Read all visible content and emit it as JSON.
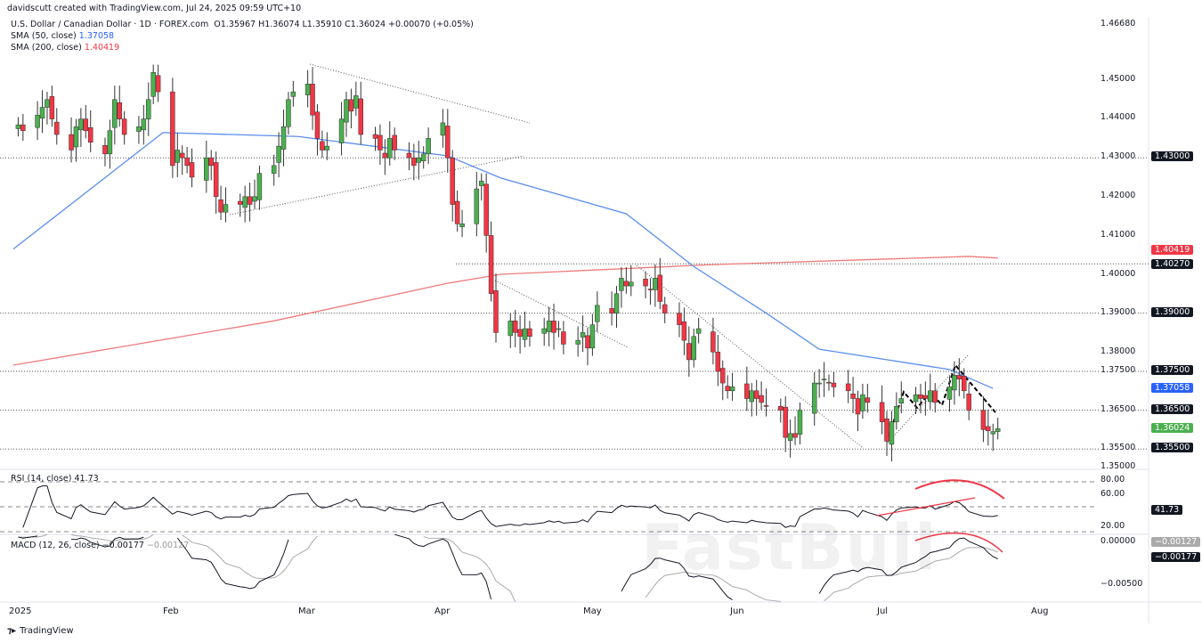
{
  "header": {
    "credit": "davidscutt created with TradingView.com, Jul 24, 2025 09:59 UTC+10"
  },
  "legend": {
    "symbol": "U.S. Dollar / Canadian Dollar · 1D · FOREX.com",
    "ohlc": "O1.35967  H1.36074  L1.35910  C1.36024  +0.00070 (+0.05%)",
    "sma50_label": "SMA (50, close)",
    "sma50_value": "1.37058",
    "sma200_label": "SMA (200, close)",
    "sma200_value": "1.40419",
    "rsi_label": "RSI (14, close)",
    "rsi_value": "41.73",
    "macd_label": "MACD (12, 26, close)",
    "macd_value1": "−0.00177",
    "macd_value2": "−0.00127"
  },
  "colors": {
    "up": "#089981",
    "up_body": "#4caf50",
    "down": "#f23645",
    "sma50": "#5b8def",
    "sma200": "#ef7b7b",
    "current": "#4caf50",
    "annotation": "#f23645"
  },
  "chart_data": {
    "type": "candlestick",
    "start_date": "2025-01-02",
    "closes": [
      1.4385,
      1.437,
      1.441,
      1.443,
      1.445,
      1.44,
      1.436,
      1.432,
      1.438,
      1.44,
      1.437,
      1.434,
      1.431,
      1.437,
      1.445,
      1.44,
      1.436,
      1.438,
      1.44,
      1.445,
      1.452,
      1.447,
      1.428,
      1.432,
      1.43,
      1.428,
      1.425,
      1.43,
      1.428,
      1.42,
      1.416,
      1.418,
      1.418,
      1.42,
      1.418,
      1.42,
      1.426,
      1.428,
      1.433,
      1.438,
      1.445,
      1.447,
      1.449,
      1.441,
      1.435,
      1.432,
      1.433,
      1.44,
      1.445,
      1.442,
      1.446,
      1.436,
      1.435,
      1.432,
      1.43,
      1.435,
      1.432,
      1.43,
      1.428,
      1.43,
      1.431,
      1.435,
      1.439,
      1.43,
      1.418,
      1.413,
      1.413,
      1.422,
      1.424,
      1.41,
      1.395,
      1.385,
      1.388,
      1.385,
      1.384,
      1.386,
      1.384,
      1.386,
      1.388,
      1.385,
      1.386,
      1.382,
      1.383,
      1.385,
      1.381,
      1.387,
      1.392,
      1.39,
      1.395,
      1.399,
      1.397,
      1.398,
      1.397,
      1.396,
      1.399,
      1.393,
      1.39,
      1.387,
      1.383,
      1.378,
      1.384,
      1.386,
      1.38,
      1.375,
      1.372,
      1.37,
      1.371,
      1.368,
      1.37,
      1.368,
      1.367,
      1.366,
      1.365,
      1.358,
      1.359,
      1.358,
      1.365,
      1.372,
      1.372,
      1.373,
      1.372,
      1.371,
      1.37,
      1.368,
      1.364,
      1.369,
      1.367,
      1.362,
      1.357,
      1.362,
      1.366,
      1.368,
      1.369,
      1.368,
      1.368,
      1.37,
      1.367,
      1.371,
      1.374,
      1.373,
      1.37,
      1.365,
      1.36,
      1.3597,
      1.3595,
      1.36024
    ],
    "sma50": [
      [
        "2025-01-01",
        1.4065
      ],
      [
        "2025-02-01",
        1.4365
      ],
      [
        "2025-03-01",
        1.4355
      ],
      [
        "2025-04-01",
        1.4305
      ],
      [
        "2025-04-12",
        1.4248
      ],
      [
        "2025-05-08",
        1.4156
      ],
      [
        "2025-05-22",
        1.402
      ],
      [
        "2025-06-06",
        1.39
      ],
      [
        "2025-06-17",
        1.3807
      ],
      [
        "2025-07-02",
        1.3778
      ],
      [
        "2025-07-14",
        1.3755
      ],
      [
        "2025-07-23",
        1.3706
      ]
    ],
    "sma200": [
      [
        "2025-01-01",
        1.3766
      ],
      [
        "2025-02-24",
        1.388
      ],
      [
        "2025-04-01",
        1.3977
      ],
      [
        "2025-04-12",
        1.4
      ],
      [
        "2025-05-26",
        1.4025
      ],
      [
        "2025-07-18",
        1.4046
      ],
      [
        "2025-07-24",
        1.4042
      ]
    ],
    "levels": [
      1.43,
      1.4027,
      1.39,
      1.375,
      1.365,
      1.355
    ],
    "price_ticks": [
      "1.46680",
      "1.45000",
      "1.44000",
      "1.43000",
      "1.42000",
      "1.41000",
      "1.40000",
      "1.39000",
      "1.38000",
      "1.37500",
      "1.36500",
      "1.35500",
      "1.35000"
    ],
    "price_labels": [
      {
        "text": "1.43000",
        "type": "level"
      },
      {
        "text": "1.40419",
        "type": "sma200"
      },
      {
        "text": "1.40270",
        "type": "level"
      },
      {
        "text": "1.39000",
        "type": "level"
      },
      {
        "text": "1.37500",
        "type": "level"
      },
      {
        "text": "1.37058",
        "type": "sma50"
      },
      {
        "text": "1.36500",
        "type": "level"
      },
      {
        "text": "1.36024",
        "type": "current"
      },
      {
        "text": "1.35500",
        "type": "level"
      }
    ],
    "rsi_ticks": [
      "80.00",
      "60.00",
      "20.00"
    ],
    "macd_ticks": [
      "0.00000",
      "−0.00500"
    ],
    "macd_labels": [
      "−0.00127",
      "−0.00177"
    ],
    "time_labels": [
      "2025",
      "Feb",
      "Mar",
      "Apr",
      "May",
      "Jun",
      "Jul",
      "Aug"
    ],
    "ylim": [
      1.35,
      1.4668
    ]
  },
  "footer": {
    "brand": "TradingView"
  },
  "watermark": "FastBull"
}
